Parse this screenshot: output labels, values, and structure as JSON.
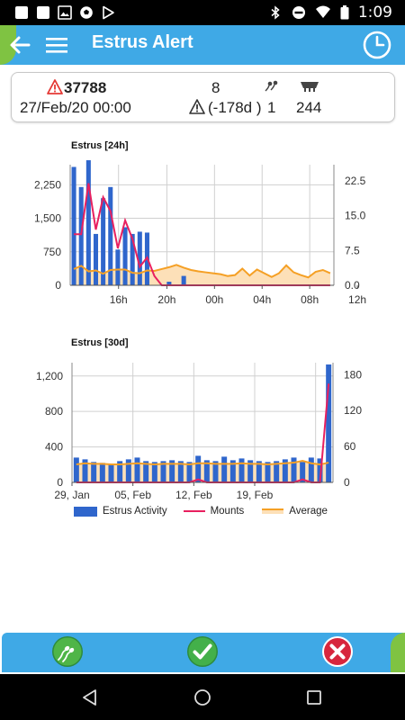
{
  "status_bar": {
    "time": "1:09",
    "icons": [
      "notification-square-icon",
      "notification-square-icon",
      "image-icon",
      "soccer-icon",
      "play-store-icon",
      "bluetooth-icon",
      "do-not-disturb-icon",
      "wifi-icon",
      "battery-icon"
    ]
  },
  "app_bar": {
    "title": "Estrus Alert",
    "icons": [
      "back-arrow-icon",
      "menu-icon",
      "clock-icon"
    ]
  },
  "alert_card": {
    "animal_id": "37788",
    "date": "27/Feb/20 00:00",
    "count": "8",
    "days": "(-178d )",
    "inseminations": "1",
    "milk": "244",
    "icons": [
      "warning-icon",
      "warning-icon",
      "insemination-icon",
      "milking-icon"
    ]
  },
  "colors": {
    "activity": "#2f66cc",
    "mounts": "#e8205f",
    "average": "#f5a025",
    "average_fill": "#fde0b8",
    "app_bar": "#3fa9e6",
    "accent_green": "#7fc342"
  },
  "chart_data": [
    {
      "type": "bar",
      "title": "Estrus [24h]",
      "x_ticks": [
        "16h",
        "20h",
        "00h",
        "04h",
        "08h",
        "12h"
      ],
      "ylim_left": [
        0,
        2700
      ],
      "ylim_right": [
        0,
        26
      ],
      "y_ticks_left": [
        "0",
        "750",
        "1,500",
        "2,250"
      ],
      "y_tick_values_left": [
        0,
        750,
        1500,
        2250
      ],
      "y_ticks_right": [
        "0.0",
        "7.5",
        "15.0",
        "22.5"
      ],
      "y_tick_values_right": [
        0,
        7.5,
        15,
        22.5
      ],
      "n_slots": 36,
      "series": [
        {
          "name": "Estrus Activity",
          "kind": "bar",
          "axis": "left",
          "values": [
            2650,
            2200,
            2800,
            1150,
            1950,
            2200,
            800,
            1300,
            1150,
            1200,
            1180,
            0,
            0,
            80,
            0,
            210,
            0,
            0,
            0,
            0,
            0,
            0,
            0,
            0,
            0,
            0,
            0,
            0,
            0,
            0,
            0,
            0,
            0,
            0,
            0,
            0
          ]
        },
        {
          "name": "Mounts",
          "kind": "line",
          "axis": "right",
          "values": [
            11,
            11,
            22,
            12,
            19,
            16,
            8,
            14,
            10,
            4,
            6,
            2,
            0,
            0,
            0,
            0,
            0,
            0,
            0,
            0,
            0,
            0,
            0,
            0,
            0,
            0,
            0,
            0,
            0,
            0,
            0,
            0,
            0,
            0,
            0,
            0
          ]
        },
        {
          "name": "Average",
          "kind": "area",
          "axis": "right",
          "values": [
            3.5,
            4.2,
            3,
            3.2,
            2.5,
            3.3,
            3.4,
            3.4,
            2.7,
            2.6,
            3.2,
            3.1,
            3.5,
            3.9,
            4.4,
            3.8,
            3.3,
            3.0,
            2.8,
            2.6,
            2.4,
            2.0,
            2.2,
            3.6,
            2.1,
            3.4,
            2.6,
            1.8,
            2.6,
            4.3,
            2.8,
            2.2,
            1.7,
            2.9,
            3.3,
            2.6
          ]
        }
      ]
    },
    {
      "type": "bar",
      "title": "Estrus [30d]",
      "x_ticks": [
        "29, Jan",
        "05, Feb",
        "12, Feb",
        "19, Feb"
      ],
      "ylim_left": [
        0,
        1350
      ],
      "ylim_right": [
        0,
        200
      ],
      "y_ticks_left": [
        "0",
        "400",
        "800",
        "1,200"
      ],
      "y_tick_values_left": [
        0,
        400,
        800,
        1200
      ],
      "y_ticks_right": [
        "0",
        "60",
        "120",
        "180"
      ],
      "y_tick_values_right": [
        0,
        60,
        120,
        180
      ],
      "n_slots": 30,
      "series": [
        {
          "name": "Estrus Activity",
          "kind": "bar",
          "axis": "left",
          "values": [
            280,
            260,
            230,
            220,
            200,
            240,
            260,
            280,
            240,
            230,
            240,
            250,
            240,
            230,
            300,
            250,
            240,
            290,
            250,
            270,
            250,
            240,
            230,
            240,
            260,
            280,
            230,
            280,
            270,
            1330
          ]
        },
        {
          "name": "Mounts",
          "kind": "line",
          "axis": "right",
          "values": [
            0,
            0,
            0,
            0,
            0,
            0,
            0,
            0,
            0,
            0,
            0,
            0,
            0,
            0,
            5,
            0,
            0,
            0,
            0,
            0,
            0,
            0,
            0,
            0,
            0,
            0,
            5,
            0,
            0,
            165
          ]
        },
        {
          "name": "Average",
          "kind": "area",
          "axis": "right",
          "values": [
            30,
            32,
            31,
            31,
            30,
            30,
            31,
            32,
            31,
            30,
            31,
            31,
            31,
            30,
            32,
            32,
            31,
            31,
            31,
            32,
            31,
            31,
            30,
            31,
            32,
            33,
            36,
            32,
            30,
            33
          ]
        }
      ]
    }
  ],
  "legend": {
    "items": [
      "Estrus Activity",
      "Mounts",
      "Average"
    ]
  },
  "bottom_bar": {
    "icons": [
      "sperm-icon",
      "confirm-check-icon",
      "cancel-x-icon"
    ]
  },
  "nav_bar": {
    "icons": [
      "nav-back-icon",
      "nav-home-icon",
      "nav-recents-icon"
    ]
  }
}
